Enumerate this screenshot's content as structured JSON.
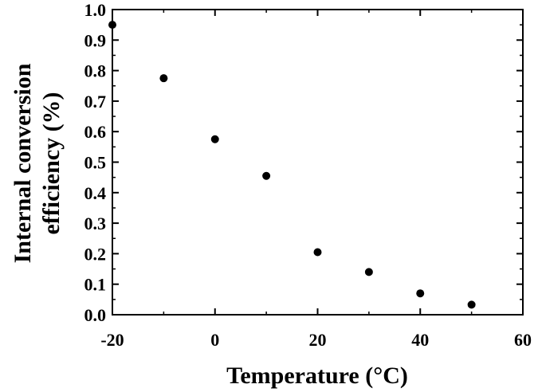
{
  "chart_data": {
    "type": "scatter",
    "title": "",
    "xlabel": "Temperature (°C)",
    "ylabel_line1": "Internal conversion",
    "ylabel_line2": "efficiency (%)",
    "xlim": [
      -20,
      60
    ],
    "ylim": [
      0.0,
      1.0
    ],
    "x_ticks": [
      -20,
      0,
      20,
      40,
      60
    ],
    "x_tick_labels": [
      "-20",
      "0",
      "20",
      "40",
      "60"
    ],
    "y_ticks": [
      0.0,
      0.1,
      0.2,
      0.3,
      0.4,
      0.5,
      0.6,
      0.7,
      0.8,
      0.9,
      1.0
    ],
    "y_tick_labels": [
      "0.0",
      "0.1",
      "0.2",
      "0.3",
      "0.4",
      "0.5",
      "0.6",
      "0.7",
      "0.8",
      "0.9",
      "1.0"
    ],
    "grid": false,
    "marker_color": "#000000",
    "series": [
      {
        "x": [
          -20,
          -10,
          0,
          10,
          20,
          30,
          40,
          50
        ],
        "y": [
          0.95,
          0.775,
          0.575,
          0.455,
          0.205,
          0.14,
          0.07,
          0.033
        ]
      }
    ]
  }
}
